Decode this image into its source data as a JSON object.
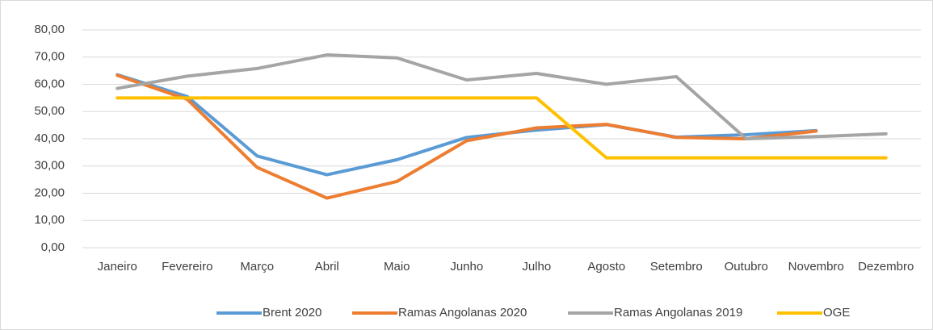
{
  "chart_data": {
    "type": "line",
    "categories": [
      "Janeiro",
      "Fevereiro",
      "Março",
      "Abril",
      "Maio",
      "Junho",
      "Julho",
      "Agosto",
      "Setembro",
      "Outubro",
      "Novembro",
      "Dezembro"
    ],
    "series": [
      {
        "name": "Brent 2020",
        "color": "#5b9bd5",
        "values": [
          63.5,
          55.5,
          33.7,
          26.8,
          32.3,
          40.5,
          43.2,
          45.2,
          40.6,
          41.5,
          43.0,
          null
        ]
      },
      {
        "name": "Ramas Angolanas 2020",
        "color": "#ed7d31",
        "values": [
          63.3,
          54.5,
          29.5,
          18.2,
          24.3,
          39.3,
          44.0,
          45.3,
          40.5,
          40.0,
          42.8,
          null
        ]
      },
      {
        "name": "Ramas Angolanas 2019",
        "color": "#a5a5a5",
        "values": [
          58.5,
          63.0,
          65.8,
          70.8,
          69.7,
          61.6,
          64.0,
          60.0,
          62.8,
          40.0,
          40.8,
          41.8
        ]
      },
      {
        "name": "OGE",
        "color": "#ffc000",
        "values": [
          55,
          55,
          55,
          55,
          55,
          55,
          55,
          33,
          33,
          33,
          33,
          33
        ]
      }
    ],
    "ylim": [
      0,
      80
    ],
    "yticks": [
      {
        "value": 0,
        "label": "0,00"
      },
      {
        "value": 10,
        "label": "10,00"
      },
      {
        "value": 20,
        "label": "20,00"
      },
      {
        "value": 30,
        "label": "30,00"
      },
      {
        "value": 40,
        "label": "40,00"
      },
      {
        "value": 50,
        "label": "50,00"
      },
      {
        "value": 60,
        "label": "60,00"
      },
      {
        "value": 70,
        "label": "70,00"
      },
      {
        "value": 80,
        "label": "80,00"
      }
    ],
    "grid": true,
    "legend": "bottom"
  }
}
